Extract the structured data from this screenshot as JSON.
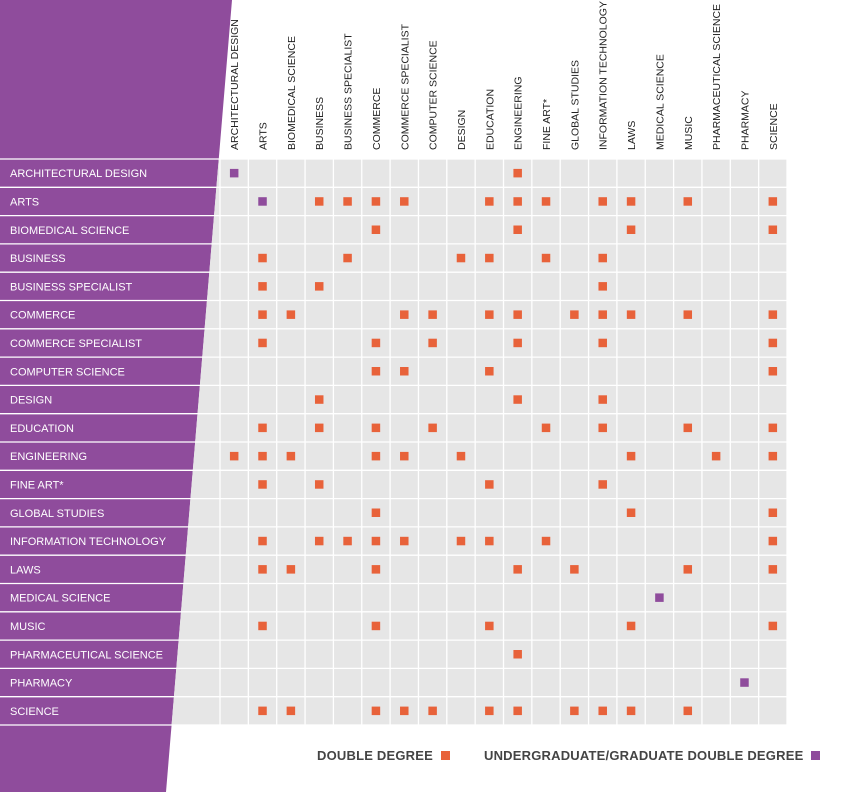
{
  "matrix": {
    "columns": [
      "ARCHITECTURAL DESIGN",
      "ARTS",
      "BIOMEDICAL SCIENCE",
      "BUSINESS",
      "BUSINESS SPECIALIST",
      "COMMERCE",
      "COMMERCE SPECIALIST",
      "COMPUTER SCIENCE",
      "DESIGN",
      "EDUCATION",
      "ENGINEERING",
      "FINE ART*",
      "GLOBAL STUDIES",
      "INFORMATION TECHNOLOGY",
      "LAWS",
      "MEDICAL SCIENCE",
      "MUSIC",
      "PHARMACEUTICAL SCIENCE",
      "PHARMACY",
      "SCIENCE"
    ],
    "rows": [
      {
        "label": "ARCHITECTURAL DESIGN",
        "double": [
          10
        ],
        "ug_grad": [
          0
        ]
      },
      {
        "label": "ARTS",
        "double": [
          3,
          4,
          5,
          6,
          9,
          10,
          11,
          13,
          14,
          16,
          19
        ],
        "ug_grad": [
          1
        ]
      },
      {
        "label": "BIOMEDICAL SCIENCE",
        "double": [
          5,
          10,
          14,
          19
        ],
        "ug_grad": []
      },
      {
        "label": "BUSINESS",
        "double": [
          1,
          4,
          8,
          9,
          11,
          13
        ],
        "ug_grad": []
      },
      {
        "label": "BUSINESS SPECIALIST",
        "double": [
          1,
          3,
          13
        ],
        "ug_grad": []
      },
      {
        "label": "COMMERCE",
        "double": [
          1,
          2,
          6,
          7,
          9,
          10,
          12,
          13,
          14,
          16,
          19
        ],
        "ug_grad": []
      },
      {
        "label": "COMMERCE SPECIALIST",
        "double": [
          1,
          5,
          7,
          10,
          13,
          19
        ],
        "ug_grad": []
      },
      {
        "label": "COMPUTER SCIENCE",
        "double": [
          5,
          6,
          9,
          19
        ],
        "ug_grad": []
      },
      {
        "label": "DESIGN",
        "double": [
          3,
          10,
          13
        ],
        "ug_grad": []
      },
      {
        "label": "EDUCATION",
        "double": [
          1,
          3,
          5,
          7,
          11,
          13,
          16,
          19
        ],
        "ug_grad": []
      },
      {
        "label": "ENGINEERING",
        "double": [
          0,
          1,
          2,
          5,
          6,
          8,
          14,
          17,
          19
        ],
        "ug_grad": []
      },
      {
        "label": "FINE ART*",
        "double": [
          1,
          3,
          9,
          13
        ],
        "ug_grad": []
      },
      {
        "label": "GLOBAL STUDIES",
        "double": [
          5,
          14,
          19
        ],
        "ug_grad": []
      },
      {
        "label": "INFORMATION TECHNOLOGY",
        "double": [
          1,
          3,
          4,
          5,
          6,
          8,
          9,
          11,
          19
        ],
        "ug_grad": []
      },
      {
        "label": "LAWS",
        "double": [
          1,
          2,
          5,
          10,
          12,
          16,
          19
        ],
        "ug_grad": []
      },
      {
        "label": "MEDICAL SCIENCE",
        "double": [],
        "ug_grad": [
          15
        ]
      },
      {
        "label": "MUSIC",
        "double": [
          1,
          5,
          9,
          14,
          19
        ],
        "ug_grad": []
      },
      {
        "label": "PHARMACEUTICAL SCIENCE",
        "double": [
          10
        ],
        "ug_grad": []
      },
      {
        "label": "PHARMACY",
        "double": [],
        "ug_grad": [
          18
        ]
      },
      {
        "label": "SCIENCE",
        "double": [
          1,
          2,
          5,
          6,
          7,
          9,
          10,
          12,
          13,
          14,
          16
        ],
        "ug_grad": []
      }
    ]
  },
  "legend": {
    "double_degree": "DOUBLE DEGREE",
    "ug_grad_double_degree": "UNDERGRADUATE/GRADUATE DOUBLE DEGREE"
  },
  "colors": {
    "purple_panel": "#8f4c9c",
    "double_degree": "#e8623a",
    "ug_grad_double_degree": "#8f4c9c",
    "cell_bg": "#e6e6e6",
    "grid_line": "#ffffff",
    "header_text": "#222222"
  }
}
